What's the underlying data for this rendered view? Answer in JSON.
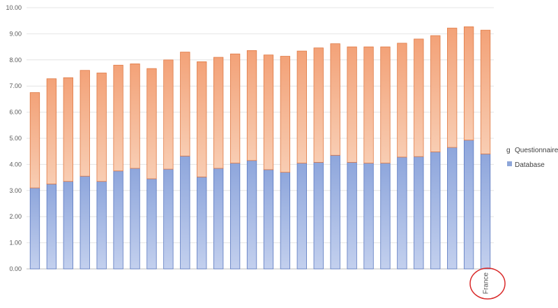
{
  "chart_data": {
    "type": "bar",
    "stacked": true,
    "categories": [
      "",
      "",
      "",
      "",
      "",
      "",
      "",
      "",
      "",
      "",
      "",
      "",
      "",
      "",
      "",
      "",
      "",
      "",
      "",
      "",
      "",
      "",
      "",
      "",
      "",
      "",
      "",
      "France"
    ],
    "series": [
      {
        "name": "Database",
        "color": "#8ea6d9",
        "values": [
          3.1,
          3.25,
          3.35,
          3.55,
          3.35,
          3.75,
          3.85,
          3.45,
          3.82,
          4.32,
          3.52,
          3.85,
          4.05,
          4.15,
          3.8,
          3.7,
          4.05,
          4.08,
          4.35,
          4.08,
          4.05,
          4.05,
          4.28,
          4.3,
          4.48,
          4.65,
          4.93,
          4.4
        ]
      },
      {
        "name": "Questionnaire",
        "color": "#f3a57a",
        "values": [
          3.65,
          4.03,
          3.97,
          4.05,
          4.15,
          4.05,
          4.0,
          4.22,
          4.18,
          3.98,
          4.41,
          4.25,
          4.18,
          4.21,
          4.39,
          4.44,
          4.29,
          4.38,
          4.27,
          4.42,
          4.45,
          4.45,
          4.36,
          4.5,
          4.45,
          4.57,
          4.34,
          4.74
        ]
      }
    ],
    "ylim": [
      0,
      10
    ],
    "yticks": [
      "0.00",
      "1.00",
      "2.00",
      "3.00",
      "4.00",
      "5.00",
      "6.00",
      "7.00",
      "8.00",
      "9.00",
      "10.00"
    ],
    "grid": true,
    "legend_position": "right",
    "legend_glyphs": [
      "g",
      ""
    ]
  }
}
